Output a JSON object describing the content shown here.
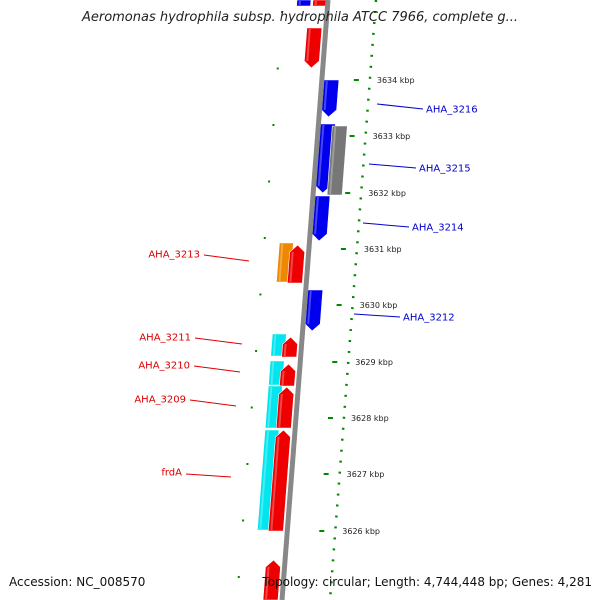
{
  "title": "Aeromonas hydrophila subsp. hydrophila ATCC 7966, complete g...",
  "footer": {
    "accession": "Accession: NC_008570",
    "summary": "Topology: circular; Length: 4,744,448 bp; Genes: 4,281"
  },
  "colors": {
    "red_gene": "#ee0000",
    "blue_gene": "#0000ee",
    "cyan_gene": "#00e5ee",
    "orange_gene": "#ee8800",
    "gray_gene": "#777777",
    "backbone": "#888888",
    "dots": "#008800",
    "label_red": "#dd0000",
    "label_blue": "#0000cc"
  },
  "ticks": [
    {
      "label": "3634 kbp"
    },
    {
      "label": "3633 kbp"
    },
    {
      "label": "3632 kbp"
    },
    {
      "label": "3631 kbp"
    },
    {
      "label": "3630 kbp"
    },
    {
      "label": "3629 kbp"
    },
    {
      "label": "3628 kbp"
    },
    {
      "label": "3627 kbp"
    },
    {
      "label": "3626 kbp"
    }
  ],
  "gene_labels": [
    {
      "name": "AHA_3216",
      "color": "blue"
    },
    {
      "name": "AHA_3215",
      "color": "blue"
    },
    {
      "name": "AHA_3214",
      "color": "blue"
    },
    {
      "name": "AHA_3213",
      "color": "red"
    },
    {
      "name": "AHA_3212",
      "color": "blue"
    },
    {
      "name": "AHA_3211",
      "color": "red"
    },
    {
      "name": "AHA_3210",
      "color": "red"
    },
    {
      "name": "AHA_3209",
      "color": "red"
    },
    {
      "name": "frdA",
      "color": "red"
    }
  ]
}
